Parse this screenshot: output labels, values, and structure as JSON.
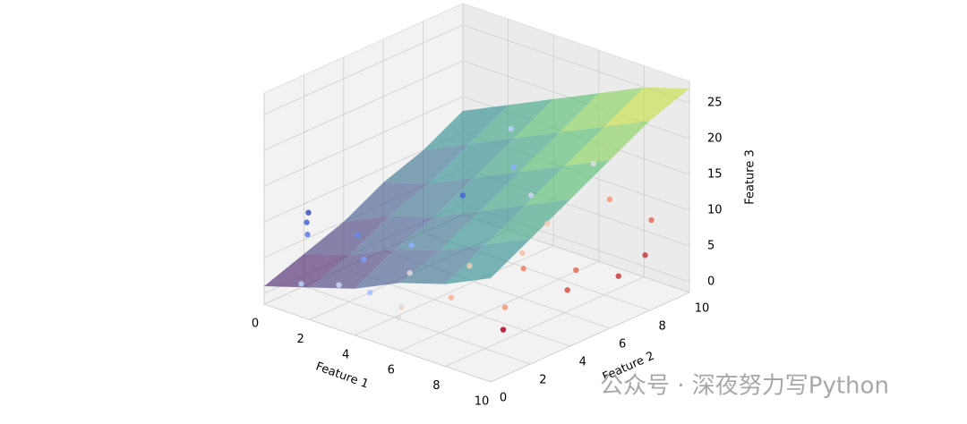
{
  "chart_data": {
    "type": "scatter3d",
    "xlabel": "Feature 1",
    "ylabel": "Feature 2",
    "zlabel": "Feature 3",
    "xlim": [
      0,
      10
    ],
    "ylim": [
      0,
      10
    ],
    "zlim": [
      -1.5,
      28
    ],
    "xticks": [
      0,
      2,
      4,
      6,
      8,
      10
    ],
    "yticks": [
      0,
      2,
      4,
      6,
      8,
      10
    ],
    "zticks": [
      0,
      5,
      10,
      15,
      20,
      25
    ],
    "grid": true,
    "surface": {
      "colormap": "viridis",
      "x": [
        0,
        2,
        4,
        6,
        8,
        10
      ],
      "y": [
        0,
        2,
        4,
        6,
        8,
        10
      ],
      "z": [
        [
          1,
          3,
          5,
          8,
          10,
          13
        ],
        [
          3,
          5,
          8,
          10,
          13,
          16
        ],
        [
          5,
          8,
          10,
          13,
          16,
          19
        ],
        [
          8,
          10,
          13,
          16,
          19,
          22
        ],
        [
          10,
          13,
          16,
          19,
          22,
          25
        ],
        [
          13,
          16,
          19,
          22,
          25,
          27
        ]
      ]
    },
    "scatter": {
      "x": [
        0.2,
        0.3,
        0.6,
        1.5,
        2.2,
        3.0,
        3.8,
        1.2,
        2.6,
        4.5,
        5.0,
        3.5,
        6.0,
        7.0,
        5.5,
        6.5,
        8.0,
        7.5,
        8.5,
        9.0,
        9.5,
        4.0,
        5.2,
        6.8,
        7.8,
        9.2,
        8.8,
        6.2,
        3.0,
        9.8
      ],
      "y": [
        2.0,
        1.8,
        1.5,
        3.0,
        2.5,
        4.0,
        1.0,
        0.5,
        0.8,
        2.2,
        1.2,
        6.0,
        3.5,
        5.0,
        0.5,
        2.0,
        3.0,
        4.5,
        6.0,
        5.0,
        7.0,
        8.0,
        7.5,
        6.5,
        8.5,
        9.0,
        2.0,
        9.5,
        9.0,
        8.0
      ],
      "z": [
        9,
        8,
        7,
        6,
        4,
        5,
        3,
        2,
        3,
        5,
        2,
        10,
        6,
        7,
        2,
        4,
        3,
        6,
        5,
        4,
        4,
        12,
        10,
        9,
        11,
        9,
        2,
        13,
        15,
        6
      ],
      "colors": [
        "#3b4cc0",
        "#4a63d3",
        "#5b7be2",
        "#6788ee",
        "#7b9ff9",
        "#8db0fe",
        "#a3c2fe",
        "#b7cff9",
        "#cad8ef",
        "#dddcdc",
        "#e8d6cc",
        "#4a63d3",
        "#f2cbb7",
        "#f5c0a7",
        "#ddd",
        "#f7b396",
        "#f4987a",
        "#ee8468",
        "#e36c55",
        "#d65244",
        "#c43c3c",
        "#8db0fe",
        "#cad8ef",
        "#f2cbb7",
        "#f4987a",
        "#e36c55",
        "#b40426",
        "#dddcdc",
        "#b7cff9",
        "#c43c3c"
      ]
    },
    "annotation": "公众号 · 深夜努力写Python"
  }
}
